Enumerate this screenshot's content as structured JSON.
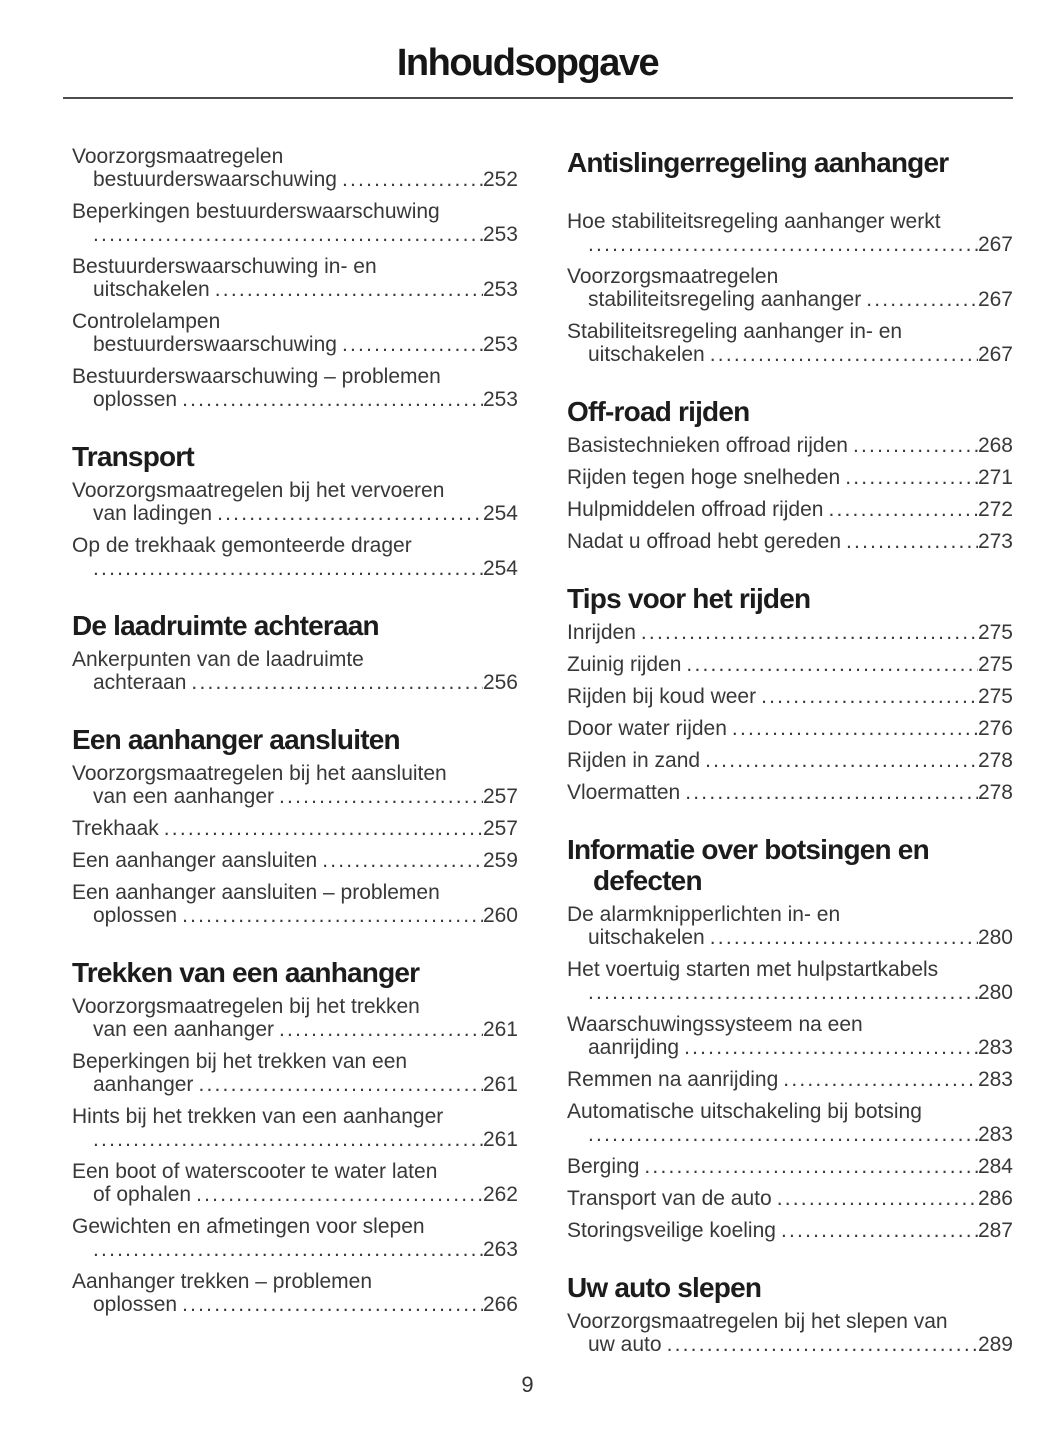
{
  "page": {
    "title": "Inhoudsopgave",
    "page_number": "9",
    "body_text_color": "#383838",
    "heading_color": "#1c1c1c"
  },
  "columns": [
    {
      "sections": [
        {
          "heading_lines": null,
          "extra_gap_after_heading": false,
          "entries": [
            {
              "text_lines": [
                "Voorzorgsmaatregelen"
              ],
              "last_text": "bestuurderswaarschuwing",
              "page": "252"
            },
            {
              "text_lines": [
                "Beperkingen bestuurderswaarschuwing"
              ],
              "last_text": "",
              "page": "253"
            },
            {
              "text_lines": [
                "Bestuurderswaarschuwing in- en"
              ],
              "last_text": "uitschakelen",
              "page": "253"
            },
            {
              "text_lines": [
                "Controlelampen"
              ],
              "last_text": "bestuurderswaarschuwing",
              "page": "253"
            },
            {
              "text_lines": [
                "Bestuurderswaarschuwing – problemen"
              ],
              "last_text": "oplossen",
              "page": "253"
            }
          ]
        },
        {
          "heading_lines": [
            "Transport"
          ],
          "extra_gap_after_heading": false,
          "entries": [
            {
              "text_lines": [
                "Voorzorgsmaatregelen bij het vervoeren"
              ],
              "last_text": "van ladingen",
              "page": "254"
            },
            {
              "text_lines": [
                "Op de trekhaak gemonteerde drager"
              ],
              "last_text": "",
              "page": "254"
            }
          ]
        },
        {
          "heading_lines": [
            "De laadruimte achteraan"
          ],
          "extra_gap_after_heading": false,
          "entries": [
            {
              "text_lines": [
                "Ankerpunten van de laadruimte"
              ],
              "last_text": "achteraan",
              "page": "256"
            }
          ]
        },
        {
          "heading_lines": [
            "Een aanhanger aansluiten"
          ],
          "extra_gap_after_heading": false,
          "entries": [
            {
              "text_lines": [
                "Voorzorgsmaatregelen bij het aansluiten"
              ],
              "last_text": "van een aanhanger",
              "page": "257"
            },
            {
              "text_lines": [],
              "last_text": "Trekhaak",
              "page": "257"
            },
            {
              "text_lines": [],
              "last_text": "Een aanhanger aansluiten",
              "page": "259"
            },
            {
              "text_lines": [
                "Een aanhanger aansluiten – problemen"
              ],
              "last_text": "oplossen",
              "page": "260"
            }
          ]
        },
        {
          "heading_lines": [
            "Trekken van een aanhanger"
          ],
          "extra_gap_after_heading": false,
          "entries": [
            {
              "text_lines": [
                "Voorzorgsmaatregelen bij het trekken"
              ],
              "last_text": "van een aanhanger",
              "page": "261"
            },
            {
              "text_lines": [
                "Beperkingen bij het trekken van een"
              ],
              "last_text": "aanhanger",
              "page": "261"
            },
            {
              "text_lines": [
                "Hints bij het trekken van een aanhanger"
              ],
              "last_text": "",
              "page": "261"
            },
            {
              "text_lines": [
                "Een boot of waterscooter te water laten"
              ],
              "last_text": "of ophalen",
              "page": "262"
            },
            {
              "text_lines": [
                "Gewichten en afmetingen voor slepen"
              ],
              "last_text": "",
              "page": "263"
            },
            {
              "text_lines": [
                "Aanhanger trekken – problemen"
              ],
              "last_text": "oplossen",
              "page": "266"
            }
          ]
        }
      ]
    },
    {
      "sections": [
        {
          "heading_lines": [
            "Antislingerregeling aanhanger"
          ],
          "extra_gap_after_heading": true,
          "entries": [
            {
              "text_lines": [
                "Hoe stabiliteitsregeling aanhanger werkt"
              ],
              "last_text": "",
              "page": "267"
            },
            {
              "text_lines": [
                "Voorzorgsmaatregelen"
              ],
              "last_text": "stabiliteitsregeling aanhanger",
              "page": "267"
            },
            {
              "text_lines": [
                "Stabiliteitsregeling aanhanger in- en"
              ],
              "last_text": "uitschakelen",
              "page": "267"
            }
          ]
        },
        {
          "heading_lines": [
            "Off-road rijden"
          ],
          "extra_gap_after_heading": false,
          "entries": [
            {
              "text_lines": [],
              "last_text": "Basistechnieken offroad rijden",
              "page": "268"
            },
            {
              "text_lines": [],
              "last_text": "Rijden tegen hoge snelheden",
              "page": "271"
            },
            {
              "text_lines": [],
              "last_text": "Hulpmiddelen offroad rijden",
              "page": "272"
            },
            {
              "text_lines": [],
              "last_text": "Nadat u offroad hebt gereden",
              "page": "273"
            }
          ]
        },
        {
          "heading_lines": [
            "Tips voor het rijden"
          ],
          "extra_gap_after_heading": false,
          "entries": [
            {
              "text_lines": [],
              "last_text": "Inrijden",
              "page": "275"
            },
            {
              "text_lines": [],
              "last_text": "Zuinig rijden",
              "page": "275"
            },
            {
              "text_lines": [],
              "last_text": "Rijden bij koud weer",
              "page": "275"
            },
            {
              "text_lines": [],
              "last_text": "Door water rijden",
              "page": "276"
            },
            {
              "text_lines": [],
              "last_text": "Rijden in zand",
              "page": "278"
            },
            {
              "text_lines": [],
              "last_text": "Vloermatten",
              "page": "278"
            }
          ]
        },
        {
          "heading_lines": [
            "Informatie over botsingen en",
            "defecten"
          ],
          "extra_gap_after_heading": false,
          "entries": [
            {
              "text_lines": [
                "De alarmknipperlichten in- en"
              ],
              "last_text": "uitschakelen",
              "page": "280"
            },
            {
              "text_lines": [
                "Het voertuig starten met hulpstartkabels"
              ],
              "last_text": "",
              "page": "280"
            },
            {
              "text_lines": [
                "Waarschuwingssysteem na een"
              ],
              "last_text": "aanrijding",
              "page": "283"
            },
            {
              "text_lines": [],
              "last_text": "Remmen na aanrijding",
              "page": "283"
            },
            {
              "text_lines": [
                "Automatische uitschakeling bij botsing"
              ],
              "last_text": "",
              "page": "283"
            },
            {
              "text_lines": [],
              "last_text": "Berging",
              "page": "284"
            },
            {
              "text_lines": [],
              "last_text": "Transport van de auto",
              "page": "286"
            },
            {
              "text_lines": [],
              "last_text": "Storingsveilige koeling",
              "page": "287"
            }
          ]
        },
        {
          "heading_lines": [
            "Uw auto slepen"
          ],
          "extra_gap_after_heading": false,
          "entries": [
            {
              "text_lines": [
                "Voorzorgsmaatregelen bij het slepen van"
              ],
              "last_text": "uw auto",
              "page": "289"
            }
          ]
        }
      ]
    }
  ]
}
